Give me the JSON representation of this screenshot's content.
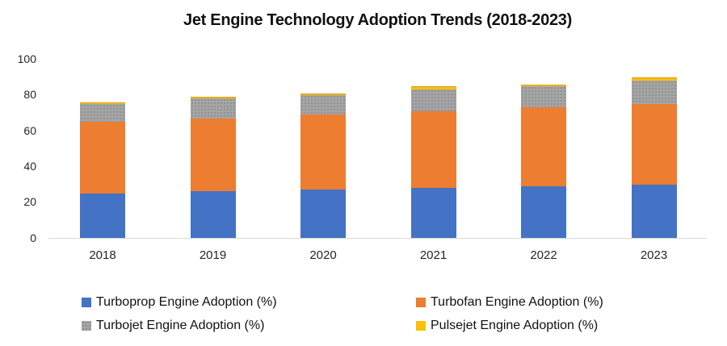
{
  "title": "Jet Engine Technology Adoption Trends (2018-2023)",
  "chart_data": {
    "type": "bar",
    "stacked": true,
    "title": "Jet Engine Technology Adoption Trends (2018-2023)",
    "categories": [
      "2018",
      "2019",
      "2020",
      "2021",
      "2022",
      "2023"
    ],
    "series": [
      {
        "name": "Turboprop Engine Adoption (%)",
        "color": "#4472C4",
        "pattern": "solid",
        "values": [
          25,
          26,
          27,
          28,
          29,
          30
        ]
      },
      {
        "name": "Turbofan Engine Adoption (%)",
        "color": "#ED7D31",
        "pattern": "solid",
        "values": [
          40,
          41,
          42,
          43,
          44,
          45
        ]
      },
      {
        "name": "Turbojet Engine Adoption (%)",
        "color": "#A5A5A5",
        "pattern": "dots",
        "values": [
          10,
          11,
          11,
          12,
          12,
          13
        ]
      },
      {
        "name": "Pulsejet Engine Adoption (%)",
        "color": "#FFC000",
        "pattern": "solid",
        "values": [
          1,
          1,
          1,
          2,
          1,
          2
        ]
      }
    ],
    "xlabel": "",
    "ylabel": "",
    "ylim": [
      0,
      100
    ],
    "yticks": [
      0,
      20,
      40,
      60,
      80,
      100
    ],
    "grid": false,
    "legend_position": "bottom-two-columns",
    "axis_line_color": "#d9d9d9"
  }
}
